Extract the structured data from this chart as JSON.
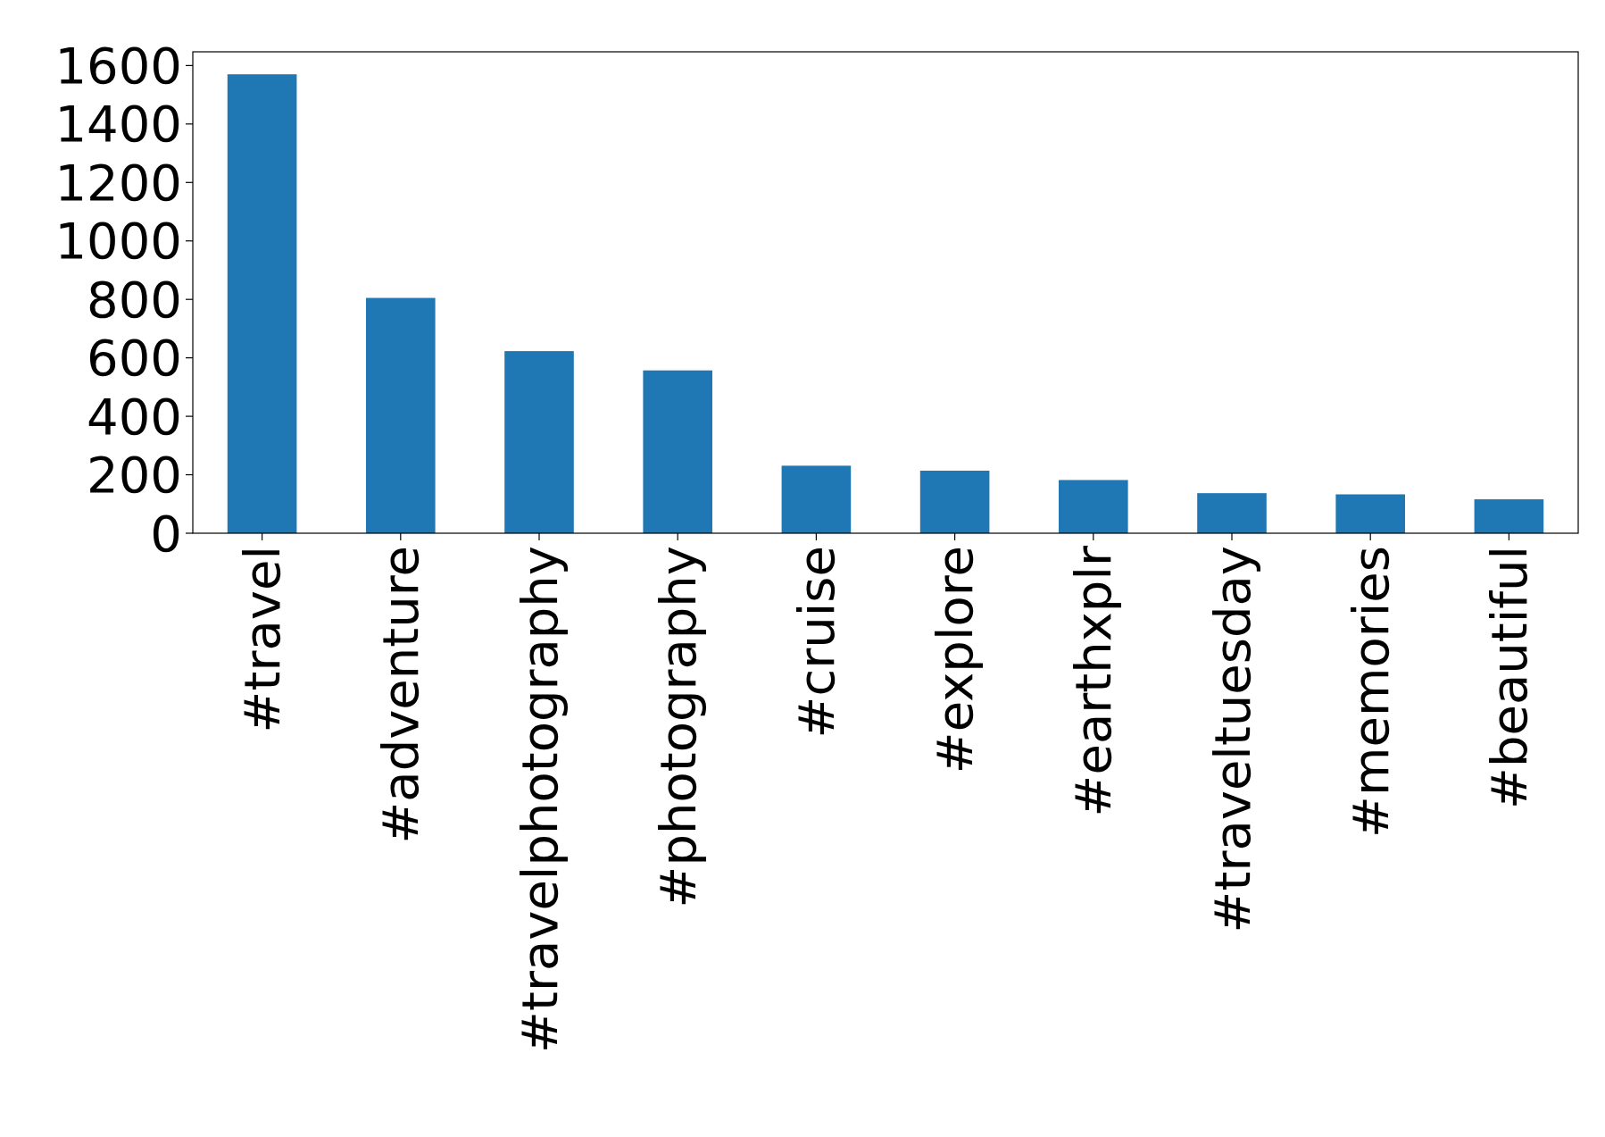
{
  "chart_data": {
    "type": "bar",
    "categories": [
      "#travel",
      "#adventure",
      "#travelphotography",
      "#photography",
      "#cruise",
      "#explore",
      "#earthxplr",
      "#traveltuesday",
      "#memories",
      "#beautiful"
    ],
    "values": [
      1570,
      805,
      623,
      557,
      231,
      214,
      182,
      137,
      133,
      116
    ],
    "color": "#1f77b4",
    "ylim": [
      0,
      1647
    ],
    "yticks": [
      0,
      200,
      400,
      600,
      800,
      1000,
      1200,
      1400,
      1600
    ],
    "grid": false
  }
}
